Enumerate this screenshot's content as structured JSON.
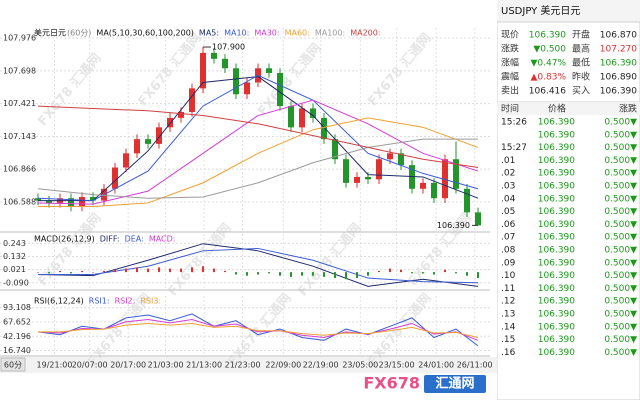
{
  "chart_data": [
    {
      "type": "candlestick",
      "title": "美元日元",
      "period": "(60分)",
      "indicator": "MA(5,10,30,60,100,200)",
      "up_color": "#e03030",
      "down_color": "#22962a",
      "open": [
        106.62,
        106.6,
        106.58,
        106.62,
        106.55,
        106.63,
        106.6,
        106.7,
        106.88,
        107.0,
        107.12,
        107.08,
        107.22,
        107.3,
        107.35,
        107.55,
        107.85,
        107.8,
        107.72,
        107.5,
        107.6,
        107.72,
        107.68,
        107.4,
        107.22,
        107.38,
        107.3,
        107.12,
        106.95,
        106.75,
        106.8,
        106.78,
        106.95,
        107.0,
        106.9,
        106.7,
        106.75,
        106.62,
        106.95,
        106.7,
        106.5
      ],
      "high": [
        106.66,
        106.64,
        106.66,
        106.66,
        106.67,
        106.67,
        106.74,
        106.92,
        107.04,
        107.16,
        107.16,
        107.26,
        107.34,
        107.39,
        107.59,
        107.9,
        107.89,
        107.84,
        107.76,
        107.64,
        107.76,
        107.76,
        107.72,
        107.44,
        107.42,
        107.42,
        107.34,
        107.16,
        106.99,
        106.84,
        106.84,
        106.99,
        107.04,
        107.04,
        106.94,
        106.79,
        106.79,
        106.99,
        107.1,
        106.74,
        106.54
      ],
      "low": [
        106.56,
        106.54,
        106.54,
        106.51,
        106.51,
        106.56,
        106.56,
        106.66,
        106.84,
        106.96,
        107.04,
        107.04,
        107.18,
        107.26,
        107.31,
        107.51,
        107.76,
        107.68,
        107.46,
        107.46,
        107.56,
        107.64,
        107.36,
        107.18,
        107.18,
        107.26,
        107.08,
        106.91,
        106.71,
        106.71,
        106.74,
        106.74,
        106.91,
        106.86,
        106.66,
        106.66,
        106.58,
        106.58,
        106.66,
        106.46,
        106.39
      ],
      "close": [
        106.6,
        106.58,
        106.62,
        106.55,
        106.63,
        106.6,
        106.7,
        106.88,
        107.0,
        107.12,
        107.08,
        107.22,
        107.3,
        107.35,
        107.55,
        107.85,
        107.8,
        107.72,
        107.5,
        107.6,
        107.72,
        107.68,
        107.4,
        107.22,
        107.38,
        107.3,
        107.12,
        106.95,
        106.75,
        106.8,
        106.78,
        106.95,
        107.0,
        106.9,
        106.7,
        106.75,
        106.62,
        106.95,
        106.7,
        106.5,
        106.39
      ],
      "series": [
        {
          "name": "MA5:",
          "color": "#1f2a6b",
          "x": [
            0,
            5,
            10,
            15,
            20,
            25,
            30,
            35,
            40
          ],
          "values": [
            106.6,
            106.6,
            107.02,
            107.6,
            107.65,
            107.32,
            106.82,
            106.8,
            106.62
          ]
        },
        {
          "name": "MA10:",
          "color": "#3b5bd6",
          "x": [
            0,
            5,
            10,
            15,
            20,
            25,
            30,
            35,
            40
          ],
          "values": [
            106.62,
            106.6,
            106.85,
            107.4,
            107.66,
            107.45,
            107.0,
            106.83,
            106.7
          ]
        },
        {
          "name": "MA30:",
          "color": "#d63bd6",
          "x": [
            0,
            5,
            10,
            15,
            20,
            25,
            30,
            35,
            40
          ],
          "values": [
            106.58,
            106.57,
            106.68,
            107.0,
            107.32,
            107.45,
            107.25,
            107.0,
            106.85
          ]
        },
        {
          "name": "MA60:",
          "color": "#f0a030",
          "x": [
            0,
            5,
            10,
            15,
            20,
            25,
            30,
            35,
            40
          ],
          "values": [
            106.55,
            106.55,
            106.58,
            106.75,
            107.0,
            107.2,
            107.3,
            107.22,
            107.05
          ]
        },
        {
          "name": "MA100:",
          "color": "#9a9a9a",
          "x": [
            0,
            5,
            10,
            15,
            20,
            25,
            30,
            35,
            40
          ],
          "values": [
            106.7,
            106.65,
            106.62,
            106.63,
            106.75,
            106.92,
            107.05,
            107.12,
            107.12
          ]
        },
        {
          "name": "MA200:",
          "color": "#d04040",
          "x": [
            0,
            5,
            10,
            15,
            20,
            25,
            30,
            35,
            40
          ],
          "values": [
            107.4,
            107.38,
            107.36,
            107.32,
            107.25,
            107.15,
            107.05,
            106.95,
            106.88
          ]
        }
      ],
      "annotations": [
        {
          "label": "107.900",
          "index": 15,
          "value": 107.9
        },
        {
          "label": "106.390",
          "index": 40,
          "value": 106.39
        }
      ],
      "ylim": [
        106.334,
        108.061
      ],
      "yticks": [
        107.976,
        107.698,
        107.421,
        107.143,
        106.866,
        106.588
      ],
      "grid": true,
      "xticks": [
        {
          "value": 1.5,
          "label": "19/21:00"
        },
        {
          "value": 4.7,
          "label": "20/07:00"
        },
        {
          "value": 8.2,
          "label": "20/17:00"
        },
        {
          "value": 11.6,
          "label": "21/03:00"
        },
        {
          "value": 15.1,
          "label": "21/13:00"
        },
        {
          "value": 18.6,
          "label": "21/23:00"
        },
        {
          "value": 22.3,
          "label": "22/09:00"
        },
        {
          "value": 25.7,
          "label": "22/19:00"
        },
        {
          "value": 29.3,
          "label": "23/05:00"
        },
        {
          "value": 32.6,
          "label": "23/15:00"
        },
        {
          "value": 36.2,
          "label": "24/01:00"
        },
        {
          "value": 39.7,
          "label": "26/11:00"
        }
      ]
    },
    {
      "type": "macd",
      "title": "MACD(26,12,9)",
      "bar_colors": [
        "#e03030",
        "#22962a"
      ],
      "series": [
        {
          "name": "DIFF:",
          "color": "#1f2a6b",
          "x": [
            0,
            5,
            10,
            15,
            20,
            25,
            30,
            35,
            40
          ],
          "values": [
            -0.02,
            -0.03,
            0.1,
            0.24,
            0.18,
            0.05,
            -0.12,
            -0.06,
            -0.12
          ]
        },
        {
          "name": "DEA:",
          "color": "#3b5bd6",
          "x": [
            0,
            5,
            10,
            15,
            20,
            25,
            30,
            35,
            40
          ],
          "values": [
            -0.02,
            -0.02,
            0.05,
            0.18,
            0.2,
            0.1,
            -0.05,
            -0.08,
            -0.09
          ]
        },
        {
          "name": "MACD:",
          "color": "#d63bd6",
          "values": [
            0.0,
            -0.01,
            0.01,
            -0.01,
            0.01,
            0.0,
            0.01,
            0.02,
            0.03,
            0.04,
            0.03,
            0.04,
            0.03,
            0.03,
            0.04,
            0.05,
            0.03,
            0.01,
            -0.02,
            -0.03,
            -0.02,
            -0.01,
            -0.03,
            -0.04,
            -0.03,
            -0.03,
            -0.04,
            -0.05,
            -0.06,
            -0.05,
            -0.03,
            0.01,
            0.03,
            0.02,
            -0.01,
            -0.01,
            -0.02,
            0.02,
            -0.01,
            -0.03,
            -0.05
          ]
        }
      ],
      "ylim": [
        -0.151,
        0.322
      ],
      "yticks": [
        0.243,
        0.132,
        0.021,
        {
          "value": -0.09,
          "label": "-0.090"
        }
      ],
      "grid": true
    },
    {
      "type": "line",
      "title": "RSI(6,12,24)",
      "series": [
        {
          "name": "RSI1:",
          "color": "#3b5bd6",
          "x": [
            0,
            2,
            4,
            6,
            8,
            10,
            12,
            14,
            16,
            18,
            20,
            22,
            24,
            26,
            28,
            30,
            32,
            34,
            36,
            38,
            40
          ],
          "values": [
            50,
            45,
            60,
            55,
            75,
            80,
            70,
            82,
            60,
            70,
            45,
            55,
            40,
            35,
            55,
            45,
            60,
            75,
            40,
            55,
            25
          ]
        },
        {
          "name": "RSI2:",
          "color": "#d63bd6",
          "x": [
            0,
            2,
            4,
            6,
            8,
            10,
            12,
            14,
            16,
            18,
            20,
            22,
            24,
            26,
            28,
            30,
            32,
            34,
            36,
            38,
            40
          ],
          "values": [
            50,
            48,
            56,
            55,
            68,
            72,
            66,
            72,
            60,
            64,
            50,
            52,
            44,
            40,
            50,
            46,
            55,
            65,
            46,
            50,
            35
          ]
        },
        {
          "name": "RSI3:",
          "color": "#f0a030",
          "x": [
            0,
            2,
            4,
            6,
            8,
            10,
            12,
            14,
            16,
            18,
            20,
            22,
            24,
            26,
            28,
            30,
            32,
            34,
            36,
            38,
            40
          ],
          "values": [
            50,
            50,
            54,
            55,
            62,
            65,
            62,
            65,
            58,
            60,
            52,
            52,
            47,
            44,
            48,
            47,
            52,
            58,
            48,
            49,
            40
          ]
        }
      ],
      "ylim": [
        7,
        114
      ],
      "yticks": [
        93.108,
        67.652,
        42.196,
        {
          "value": 16.74,
          "label": "16.740"
        }
      ],
      "grid": true
    }
  ],
  "period_button": "60分",
  "watermark": "FX678 汇通网",
  "logo": [
    "FX678",
    "汇通网"
  ],
  "quote": {
    "title": "USDJPY 美元日元",
    "rows": [
      [
        {
          "text": "现价"
        },
        {
          "text": "106.390",
          "color": "#1a9a1a"
        },
        {
          "text": "开盘"
        },
        {
          "text": "106.870",
          "color": "#222222"
        }
      ],
      [
        {
          "text": "涨跌"
        },
        {
          "text": "▼0.500",
          "color": "#1a9a1a"
        },
        {
          "text": "最高"
        },
        {
          "text": "107.270",
          "color": "#e03030"
        }
      ],
      [
        {
          "text": "涨幅"
        },
        {
          "text": "▼0.47%",
          "color": "#1a9a1a"
        },
        {
          "text": "最低"
        },
        {
          "text": "106.390",
          "color": "#1a9a1a"
        }
      ],
      [
        {
          "text": "震幅"
        },
        {
          "text": "▲0.83%",
          "color": "#e03030"
        },
        {
          "text": "昨收"
        },
        {
          "text": "106.890",
          "color": "#222222"
        }
      ],
      [
        {
          "text": "卖出"
        },
        {
          "text": "106.416",
          "color": "#222222"
        },
        {
          "text": "买入"
        },
        {
          "text": "106.390",
          "color": "#222222"
        }
      ]
    ]
  },
  "trades": {
    "columns": [
      "时间",
      "价格",
      "涨跌"
    ],
    "color": "#1a9a1a",
    "rows": [
      [
        "15:26",
        "106.390",
        "0.500▼"
      ],
      [
        null,
        "106.390",
        "0.500▼"
      ],
      [
        "15:27",
        "106.390",
        "0.500▼"
      ],
      [
        ".01",
        "106.390",
        "0.500▼"
      ],
      [
        ".02",
        "106.390",
        "0.500▼"
      ],
      [
        ".03",
        "106.390",
        "0.500▼"
      ],
      [
        ".04",
        "106.390",
        "0.500▼"
      ],
      [
        ".05",
        "106.390",
        "0.500▼"
      ],
      [
        ".06",
        "106.390",
        "0.500▼"
      ],
      [
        ".07",
        "106.390",
        "0.500▼"
      ],
      [
        ".08",
        "106.390",
        "0.500▼"
      ],
      [
        ".09",
        "106.390",
        "0.500▼"
      ],
      [
        ".10",
        "106.390",
        "0.500▼"
      ],
      [
        ".11",
        "106.390",
        "0.500▼"
      ],
      [
        ".12",
        "106.390",
        "0.500▼"
      ],
      [
        ".13",
        "106.390",
        "0.500▼"
      ],
      [
        ".14",
        "106.390",
        "0.500▼"
      ],
      [
        ".15",
        "106.390",
        "0.500▼"
      ],
      [
        ".16",
        "106.390",
        "0.500▼"
      ]
    ]
  }
}
